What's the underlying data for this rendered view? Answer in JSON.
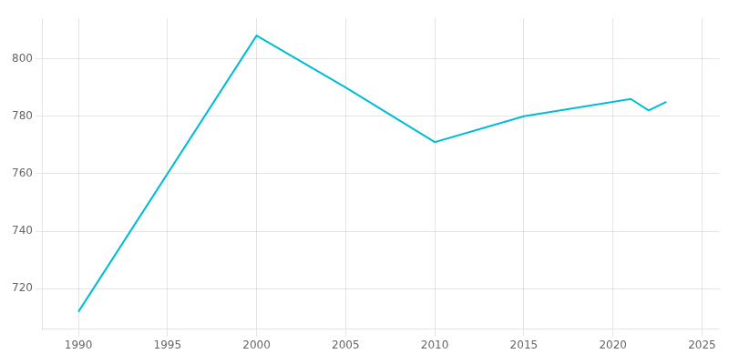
{
  "chart_data": {
    "type": "line",
    "x": [
      1990,
      2000,
      2005,
      2010,
      2015,
      2021,
      2022,
      2023
    ],
    "values": [
      712,
      808,
      790,
      771,
      780,
      786,
      782,
      785
    ],
    "color": "#00BCD4",
    "xlim": [
      1988,
      2026
    ],
    "ylim": [
      706,
      814
    ],
    "xticks": [
      1990,
      1995,
      2000,
      2005,
      2010,
      2015,
      2020,
      2025
    ],
    "yticks": [
      720,
      740,
      760,
      780,
      800
    ],
    "grid": true
  }
}
